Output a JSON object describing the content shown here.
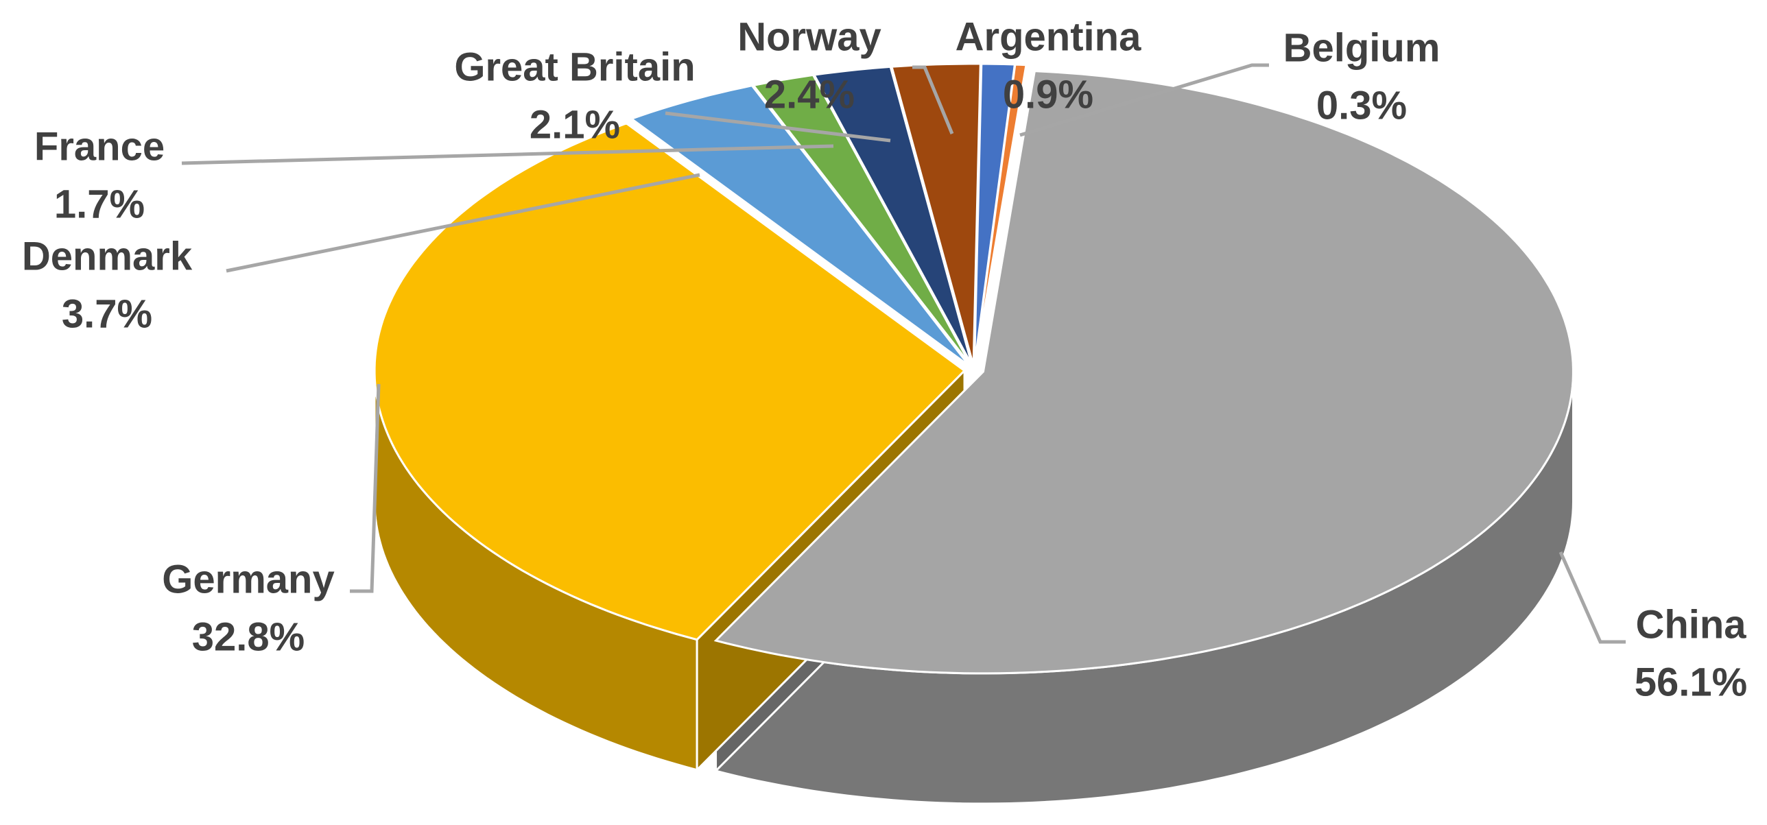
{
  "chart_data": {
    "type": "pie3d",
    "categories": [
      "China",
      "Germany",
      "Denmark",
      "France",
      "Great Britain",
      "Norway",
      "Argentina",
      "Belgium"
    ],
    "values": [
      56.1,
      32.8,
      3.7,
      1.7,
      2.1,
      2.4,
      0.9,
      0.3
    ],
    "value_labels": [
      "56.1%",
      "32.8%",
      "3.7%",
      "1.7%",
      "2.1%",
      "2.4%",
      "0.9%",
      "0.3%"
    ],
    "colors": [
      "#a5a5a5",
      "#fbbd00",
      "#5b9bd5",
      "#70ad47",
      "#264478",
      "#9e480e",
      "#4472c4",
      "#ed7d31"
    ]
  }
}
